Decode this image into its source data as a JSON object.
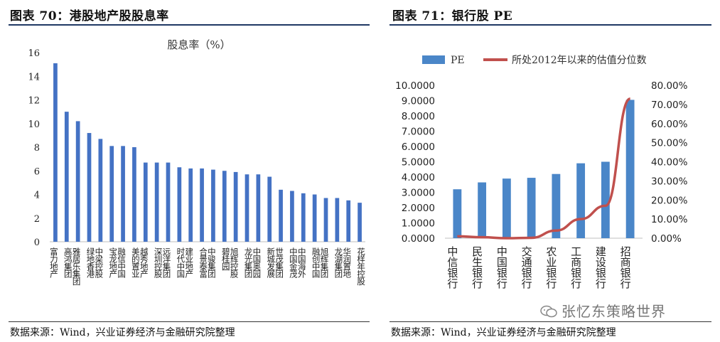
{
  "left_panel": {
    "title": "图表 70：港股地产股股息率",
    "source": "数据来源：Wind，兴业证券经济与金融研究院整理"
  },
  "right_panel": {
    "title": "图表 71：银行股 PE",
    "source": "数据来源：Wind，兴业证券经济与金融研究院整理"
  },
  "watermark": {
    "text": "张忆东策略世界",
    "icon": "wechat-icon"
  },
  "chart_data": [
    {
      "type": "bar",
      "title": "股息率（%）",
      "categories": [
        "富力地产",
        "高鸿集团",
        "雅居乐集团",
        "绿地香港",
        "中梁控股",
        "宝龙地产",
        "融信中国",
        "美的置业",
        "越秀地产",
        "深圳控股",
        "远洋集团",
        "时代中国",
        "建业地产",
        "合景泰富",
        "中骏集团",
        "碧桂园",
        "旭辉控股",
        "龙光集团",
        "中国奥园",
        "新城发展",
        "世茂集团",
        "中国金茂",
        "中国海外",
        "融创中国",
        "旭辉集团",
        "龙湖集团",
        "华润置地",
        "花样年控股"
      ],
      "values": [
        15.1,
        11.0,
        10.2,
        9.2,
        8.7,
        8.1,
        8.1,
        8.0,
        6.7,
        6.7,
        6.7,
        6.3,
        6.2,
        6.2,
        6.1,
        6.0,
        5.9,
        5.7,
        5.7,
        5.5,
        4.4,
        4.3,
        4.1,
        4.0,
        3.7,
        3.7,
        3.5,
        3.3
      ],
      "ylim": [
        0,
        16
      ],
      "yticks": [
        "0",
        "2",
        "4",
        "6",
        "8",
        "10",
        "12",
        "14",
        "16"
      ],
      "bar_color": "#4472c4",
      "grid": false
    },
    {
      "type": "bar+line",
      "categories": [
        "中信银行",
        "民生银行",
        "中国银行",
        "交通银行",
        "农业银行",
        "工商银行",
        "建设银行",
        "招商银行"
      ],
      "series": [
        {
          "name": "PE",
          "type": "bar",
          "axis": "left",
          "values": [
            3.2,
            3.65,
            3.9,
            3.95,
            4.2,
            4.9,
            5.0,
            9.05
          ],
          "color": "#4a86c8"
        },
        {
          "name": "所处2012年以来的估值分位数",
          "type": "line",
          "axis": "right",
          "values": [
            0.01,
            0.005,
            0.0,
            0.002,
            0.04,
            0.1,
            0.17,
            0.73
          ],
          "color": "#c0504d"
        }
      ],
      "left_ylim": [
        0,
        10
      ],
      "left_yticks": [
        "0.0000",
        "1.0000",
        "2.0000",
        "3.0000",
        "4.0000",
        "5.0000",
        "6.0000",
        "7.0000",
        "8.0000",
        "9.0000",
        "10.0000"
      ],
      "right_ylim": [
        0,
        0.8
      ],
      "right_yticks": [
        "0.00%",
        "10.00%",
        "20.00%",
        "30.00%",
        "40.00%",
        "50.00%",
        "60.00%",
        "70.00%",
        "80.00%"
      ],
      "legend_position": "top",
      "grid": false
    }
  ]
}
